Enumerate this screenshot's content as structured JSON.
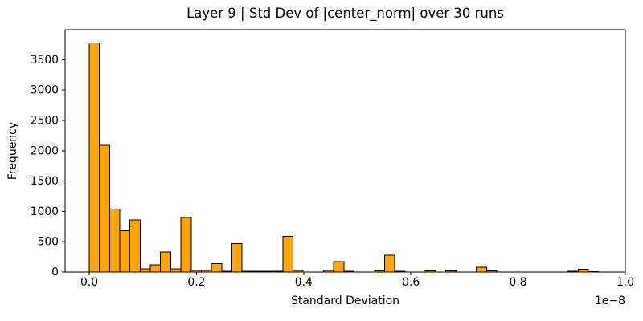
{
  "chart_data": {
    "type": "bar",
    "subtype": "histogram",
    "title": "Layer 9 | Std Dev of |center_norm| over 30 runs",
    "xlabel": "Standard Deviation",
    "ylabel": "Frequency",
    "x_offset_label": "1e−8",
    "bin_start": 0,
    "bin_width": 0.019,
    "bin_unit": "1e-8",
    "values": [
      3780,
      2090,
      1040,
      680,
      860,
      50,
      120,
      330,
      50,
      900,
      25,
      25,
      140,
      15,
      470,
      15,
      10,
      10,
      10,
      590,
      25,
      0,
      0,
      25,
      170,
      10,
      0,
      0,
      20,
      280,
      10,
      0,
      0,
      20,
      0,
      20,
      0,
      0,
      80,
      20,
      0,
      0,
      0,
      0,
      0,
      0,
      0,
      10,
      45,
      5
    ],
    "xticks": [
      0.0,
      0.2,
      0.4,
      0.6,
      0.8,
      1.0
    ],
    "xtick_labels": [
      "0.0",
      "0.2",
      "0.4",
      "0.6",
      "0.8",
      "1.0"
    ],
    "yticks": [
      0,
      500,
      1000,
      1500,
      2000,
      2500,
      3000,
      3500
    ],
    "xlim": [
      -0.045,
      1.0
    ],
    "ylim": [
      0,
      3995
    ],
    "grid": false,
    "legend": null,
    "bar_color": "#FFA500",
    "bar_edge_color": "#000000",
    "axis_color": "#000000",
    "background_color": "#ffffff"
  }
}
